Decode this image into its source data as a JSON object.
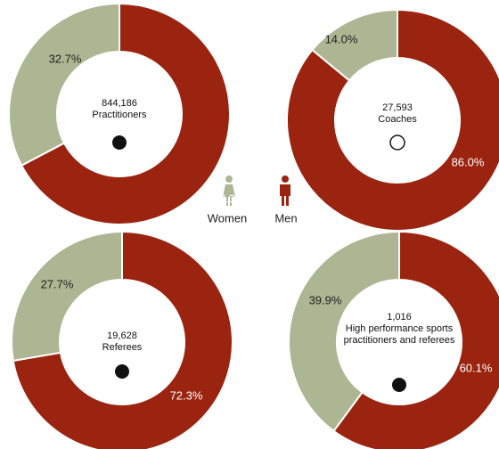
{
  "chart_data": [
    {
      "type": "donut",
      "categories": [
        "Men",
        "Women"
      ],
      "values": [
        67.3,
        32.7
      ],
      "value_labels": [
        "67.3%",
        "32.7%"
      ],
      "colors": [
        "#9b2410",
        "#adb592"
      ],
      "center": {
        "value": 844186,
        "label": "844,186"
      },
      "title": "Practitioners"
    },
    {
      "type": "donut",
      "categories": [
        "Men",
        "Women"
      ],
      "values": [
        86.0,
        14.0
      ],
      "value_labels": [
        "86.0%",
        "14.0%"
      ],
      "colors": [
        "#9b2410",
        "#adb592"
      ],
      "center": {
        "value": 27593,
        "label": "27,593"
      },
      "title": "Coaches"
    },
    {
      "type": "donut",
      "categories": [
        "Men",
        "Women"
      ],
      "values": [
        72.3,
        27.7
      ],
      "value_labels": [
        "72.3%",
        "27.7%"
      ],
      "colors": [
        "#9b2410",
        "#adb592"
      ],
      "center": {
        "value": 19628,
        "label": "19,628"
      },
      "title": "Referees"
    },
    {
      "type": "donut",
      "categories": [
        "Men",
        "Women"
      ],
      "values": [
        60.1,
        39.9
      ],
      "value_labels": [
        "60.1%",
        "39.9%"
      ],
      "colors": [
        "#9b2410",
        "#adb592"
      ],
      "center": {
        "value": 1016,
        "label": "1,016"
      },
      "title": "High performance sports practitioners and referees"
    }
  ]
}
